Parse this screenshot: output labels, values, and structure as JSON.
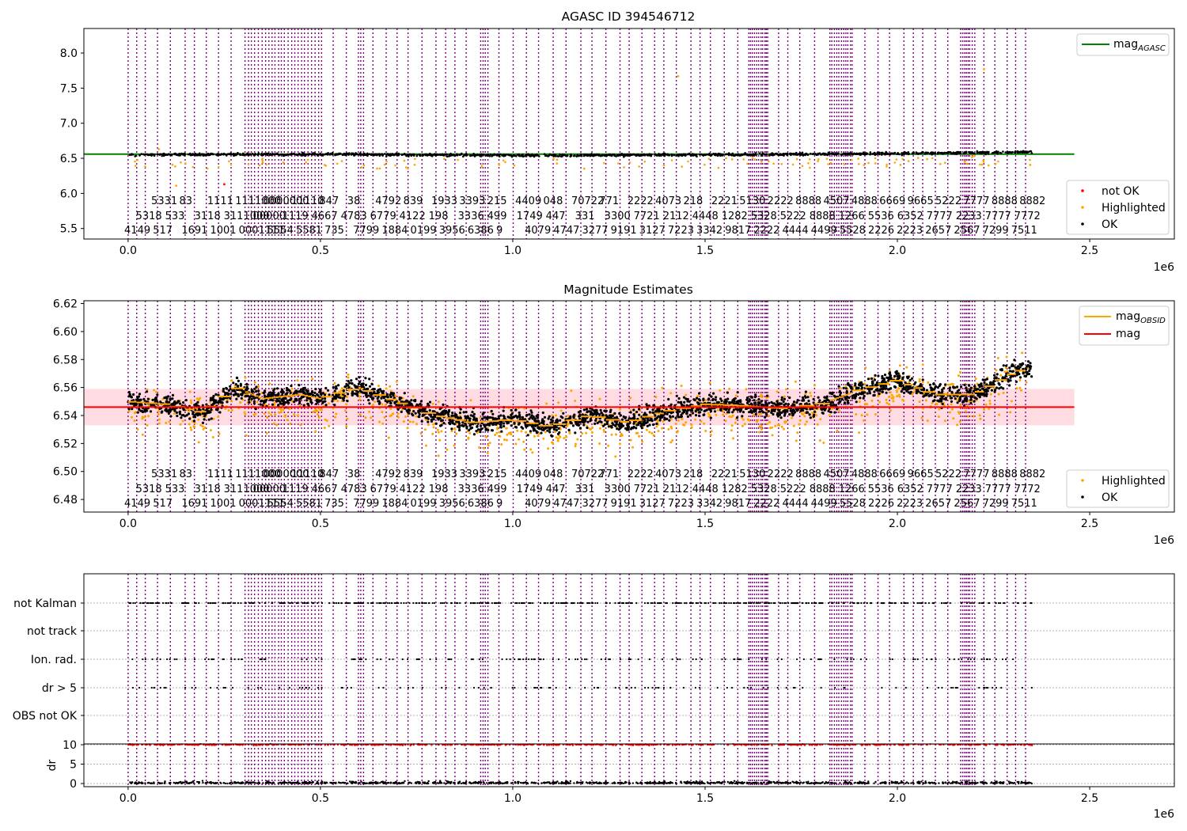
{
  "colors": {
    "obsid_line": "#800080",
    "ok": "#000000",
    "highlighted": "#ffa500",
    "not_ok": "#ff0000",
    "mag_agasc": "#008000",
    "mag_obsid": "#ffa500",
    "mag": "#ff0000",
    "mag_band": "#ffc0cb",
    "grid": "#b0b0b0"
  },
  "chart_data": [
    {
      "type": "scatter",
      "title": "AGASC ID 394546712",
      "x_scale_label": "1e6",
      "xlim": [
        -115000,
        2720000
      ],
      "ylim": [
        5.35,
        8.35
      ],
      "x_ticks": [
        0,
        0.5,
        1.0,
        1.5,
        2.0,
        2.5
      ],
      "x_tick_labels": [
        "0.0",
        "0.5",
        "1.0",
        "1.5",
        "2.0",
        "2.5"
      ],
      "y_ticks": [
        5.5,
        6.0,
        6.5,
        7.0,
        7.5,
        8.0
      ],
      "y_tick_labels": [
        "5.5",
        "6.0",
        "6.5",
        "7.0",
        "7.5",
        "8.0"
      ],
      "reference_line": {
        "label": "mag_AGASC",
        "label_main": "mag",
        "label_sub": "AGASC",
        "value": 6.56,
        "x_range": [
          -115000,
          2460000
        ]
      },
      "legends": {
        "upper_right": [
          "mag_AGASC"
        ],
        "lower_right": [
          {
            "label": "not OK",
            "color": "#ff0000"
          },
          {
            "label": "Highlighted",
            "color": "#ffa500"
          },
          {
            "label": "OK",
            "color": "#000000"
          }
        ]
      },
      "series": [
        {
          "name": "OK",
          "x_range": [
            0,
            2350000
          ],
          "y_trend": [
            [
              0,
              6.55
            ],
            [
              500000,
              6.56
            ],
            [
              1000000,
              6.54
            ],
            [
              1500000,
              6.55
            ],
            [
              2000000,
              6.57
            ],
            [
              2350000,
              6.59
            ]
          ]
        },
        {
          "name": "Highlighted",
          "y_range": [
            6.4,
            6.65
          ]
        },
        {
          "name": "not OK",
          "y_range": [
            6.0,
            6.2
          ]
        }
      ],
      "outliers": [
        {
          "x": 1430000,
          "y": 7.67
        },
        {
          "x": 2225000,
          "y": 7.77
        },
        {
          "x": 250000,
          "y": 6.13
        },
        {
          "x": 80000,
          "y": 6.63
        },
        {
          "x": 125000,
          "y": 6.11
        }
      ]
    },
    {
      "type": "scatter",
      "title": "Magnitude Estimates",
      "x_scale_label": "1e6",
      "xlim": [
        -115000,
        2720000
      ],
      "ylim": [
        6.471,
        6.622
      ],
      "x_ticks": [
        0,
        0.5,
        1.0,
        1.5,
        2.0,
        2.5
      ],
      "x_tick_labels": [
        "0.0",
        "0.5",
        "1.0",
        "1.5",
        "2.0",
        "2.5"
      ],
      "y_ticks": [
        6.48,
        6.5,
        6.52,
        6.54,
        6.56,
        6.58,
        6.6,
        6.62
      ],
      "y_tick_labels": [
        "6.48",
        "6.50",
        "6.52",
        "6.54",
        "6.56",
        "6.58",
        "6.60",
        "6.62"
      ],
      "mag": {
        "label": "mag",
        "value": 6.546,
        "band": [
          6.533,
          6.559
        ],
        "x_range": [
          -115000,
          2460000
        ]
      },
      "legends": {
        "upper_right": [
          {
            "label_main": "mag",
            "label_sub": "OBSID",
            "color": "#ffa500"
          },
          {
            "label_main": "mag",
            "label_sub": "",
            "color": "#ff0000"
          }
        ],
        "lower_right": [
          {
            "label": "Highlighted",
            "color": "#ffa500"
          },
          {
            "label": "OK",
            "color": "#000000"
          }
        ]
      },
      "series": [
        {
          "name": "OK",
          "x_range": [
            0,
            2350000
          ],
          "y_trend": [
            [
              0,
              6.55
            ],
            [
              100000,
              6.548
            ],
            [
              200000,
              6.542
            ],
            [
              280000,
              6.56
            ],
            [
              350000,
              6.552
            ],
            [
              450000,
              6.555
            ],
            [
              500000,
              6.552
            ],
            [
              600000,
              6.56
            ],
            [
              650000,
              6.555
            ],
            [
              700000,
              6.55
            ],
            [
              800000,
              6.54
            ],
            [
              900000,
              6.535
            ],
            [
              1000000,
              6.537
            ],
            [
              1100000,
              6.532
            ],
            [
              1200000,
              6.54
            ],
            [
              1300000,
              6.535
            ],
            [
              1400000,
              6.543
            ],
            [
              1500000,
              6.548
            ],
            [
              1600000,
              6.547
            ],
            [
              1700000,
              6.545
            ],
            [
              1800000,
              6.548
            ],
            [
              1900000,
              6.558
            ],
            [
              2000000,
              6.565
            ],
            [
              2100000,
              6.555
            ],
            [
              2200000,
              6.555
            ],
            [
              2300000,
              6.57
            ],
            [
              2350000,
              6.575
            ]
          ],
          "half_width": 0.012
        },
        {
          "name": "Highlighted",
          "y_range": [
            6.471,
            6.622
          ]
        }
      ]
    },
    {
      "type": "scatter",
      "title": "",
      "x_scale_label": "1e6",
      "xlim": [
        -115000,
        2720000
      ],
      "flag_labels": [
        "not Kalman",
        "not track",
        "Ion. rad.",
        "dr > 5",
        "OBS not OK"
      ],
      "dr_ylabel": "dr",
      "dr_ylim": [
        -0.3,
        10.3
      ],
      "dr_ticks": [
        0,
        5,
        10
      ],
      "dr_tick_labels": [
        "0",
        "5",
        "10"
      ],
      "x_ticks": [
        0,
        0.5,
        1.0,
        1.5,
        2.0,
        2.5
      ],
      "x_tick_labels": [
        "0.0",
        "0.5",
        "1.0",
        "1.5",
        "2.0",
        "2.5"
      ],
      "dr_threshold": 10
    }
  ],
  "obs_label_rows": {
    "row1": [
      "5331",
      "83",
      "1111",
      "1111000",
      "0000000",
      "11110",
      "847",
      "38",
      "4792",
      "839",
      "1933",
      "3393",
      "215",
      "4409",
      "048",
      "70722",
      "771",
      "2222",
      "4073",
      "218",
      "2221",
      "5130",
      "2222",
      "8888",
      "4507",
      "4888",
      "6669",
      "9665",
      "5222",
      "7777",
      "8888",
      "8882"
    ],
    "row2": [
      "5318",
      "533",
      "3118",
      "3111000",
      "00000",
      "1119",
      "4667",
      "4783",
      "6779",
      "4122",
      "198",
      "3336",
      "499",
      "1749",
      "447",
      "331",
      "3300",
      "7721",
      "2112",
      "4448",
      "1282",
      "5328",
      "5222",
      "8888",
      "1266",
      "5536",
      "6352",
      "7777",
      "2233",
      "7777",
      "7772"
    ],
    "row3": [
      "4149",
      "517",
      "1691",
      "1001",
      "0001111",
      "5554",
      "5581",
      "735",
      "7799",
      "1884",
      "0199",
      "3956",
      "6386",
      "9",
      "4079",
      "4747",
      "3277",
      "9191",
      "3127",
      "7223",
      "3342",
      "9817",
      "2222",
      "4444",
      "4499",
      "5528",
      "2226",
      "2223",
      "2657",
      "2567",
      "7299",
      "7511"
    ]
  }
}
